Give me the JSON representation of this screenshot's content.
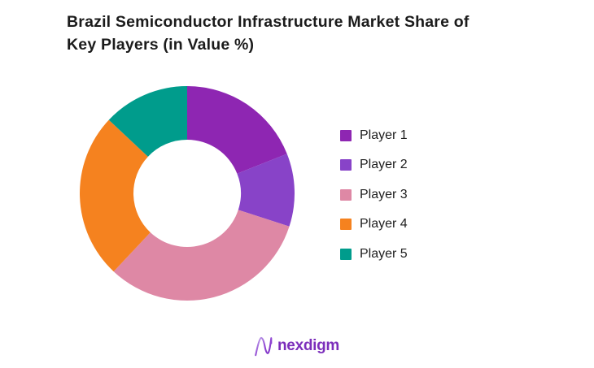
{
  "title": {
    "line1": "Brazil Semiconductor Infrastructure Market Share of",
    "line2": "Key Players (in Value %)"
  },
  "legend": {
    "position": "right",
    "items": [
      {
        "label": "Player 1",
        "color": "#8E26B2"
      },
      {
        "label": "Player 2",
        "color": "#8843C8"
      },
      {
        "label": "Player 3",
        "color": "#DE88A5"
      },
      {
        "label": "Player 4",
        "color": "#F5821F"
      },
      {
        "label": "Player 5",
        "color": "#009C8C"
      }
    ]
  },
  "brand": {
    "logo_text": "nexdigm",
    "logo_text_color": "#7C2EBB",
    "logo_mark": "stylized-n-wave",
    "logo_mark_gradient": [
      "#C2A9EC",
      "#9046D2",
      "#7B2EC4"
    ]
  },
  "colors": {
    "background": "#FFFFFF",
    "title_text": "#1B1B1B",
    "legend_text": "#1E1E1E"
  },
  "chart_data": {
    "type": "pie",
    "subtype": "donut",
    "title": "Brazil Semiconductor Infrastructure Market Share of Key Players (in Value %)",
    "categories": [
      "Player 1",
      "Player 2",
      "Player 3",
      "Player 4",
      "Player 5"
    ],
    "values": [
      19,
      11,
      32,
      25,
      13
    ],
    "unit": "percent",
    "values_note": "no numeric data labels shown in chart; values estimated from arc angles",
    "colors": [
      "#8E26B2",
      "#8843C8",
      "#DE88A5",
      "#F5821F",
      "#009C8C"
    ],
    "start_angle_deg": 0,
    "direction": "clockwise",
    "inner_radius_ratio": 0.5,
    "data_labels": "none",
    "legend_position": "right"
  }
}
